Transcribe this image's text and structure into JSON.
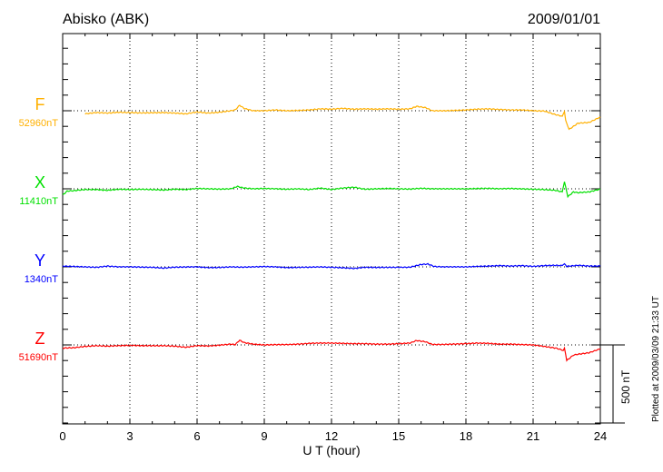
{
  "chart_data": {
    "type": "line",
    "title": "Abisko (ABK)",
    "date": "2009/01/01",
    "xlabel": "U T (hour)",
    "xlim": [
      0,
      24
    ],
    "xticks": [
      "0",
      "3",
      "6",
      "9",
      "12",
      "15",
      "18",
      "21",
      "24"
    ],
    "y_units": "nT deviation from baseline",
    "scale_bar_label": "500 nT",
    "scale_bar_nT": 500,
    "minor_tick_nT": 100,
    "footer": "Plotted at 2009/03/09 21:33 UT",
    "grid": true,
    "series": [
      {
        "name": "F",
        "baseline_label": "52960nT",
        "color": "#ffb000",
        "points": [
          [
            1,
            -20
          ],
          [
            1.5,
            -12
          ],
          [
            2,
            -15
          ],
          [
            2.5,
            -10
          ],
          [
            3,
            -12
          ],
          [
            3.5,
            -14
          ],
          [
            4,
            -13
          ],
          [
            4.5,
            -12
          ],
          [
            5,
            -15
          ],
          [
            5.5,
            -20
          ],
          [
            6,
            -8
          ],
          [
            6.5,
            -15
          ],
          [
            7,
            -10
          ],
          [
            7.5,
            0
          ],
          [
            7.7,
            5
          ],
          [
            7.9,
            35
          ],
          [
            8.1,
            15
          ],
          [
            8.5,
            0
          ],
          [
            9,
            0
          ],
          [
            9.5,
            5
          ],
          [
            10,
            0
          ],
          [
            10.5,
            2
          ],
          [
            11,
            5
          ],
          [
            11.5,
            12
          ],
          [
            12,
            10
          ],
          [
            12.5,
            15
          ],
          [
            13,
            10
          ],
          [
            13.5,
            12
          ],
          [
            14,
            10
          ],
          [
            14.5,
            12
          ],
          [
            15,
            10
          ],
          [
            15.5,
            12
          ],
          [
            15.8,
            28
          ],
          [
            16.2,
            20
          ],
          [
            16.5,
            0
          ],
          [
            17,
            0
          ],
          [
            17.5,
            2
          ],
          [
            18,
            5
          ],
          [
            18.5,
            10
          ],
          [
            19,
            12
          ],
          [
            19.5,
            8
          ],
          [
            20,
            5
          ],
          [
            20.5,
            5
          ],
          [
            21,
            0
          ],
          [
            21.5,
            -2
          ],
          [
            22,
            -25
          ],
          [
            22.3,
            -35
          ],
          [
            22.4,
            -5
          ],
          [
            22.45,
            -60
          ],
          [
            22.6,
            -120
          ],
          [
            23,
            -80
          ],
          [
            23.5,
            -75
          ],
          [
            24,
            -40
          ]
        ]
      },
      {
        "name": "X",
        "baseline_label": "11410nT",
        "color": "#00e000",
        "points": [
          [
            0,
            -40
          ],
          [
            0.2,
            -15
          ],
          [
            0.5,
            -12
          ],
          [
            1,
            -5
          ],
          [
            1.5,
            -5
          ],
          [
            2,
            -10
          ],
          [
            2.5,
            -3
          ],
          [
            3,
            -5
          ],
          [
            3.5,
            -3
          ],
          [
            4,
            -5
          ],
          [
            4.5,
            -8
          ],
          [
            5,
            -3
          ],
          [
            5.5,
            -5
          ],
          [
            6,
            2
          ],
          [
            6.5,
            0
          ],
          [
            7,
            -2
          ],
          [
            7.5,
            0
          ],
          [
            7.8,
            15
          ],
          [
            8.1,
            5
          ],
          [
            8.5,
            0
          ],
          [
            9,
            2
          ],
          [
            9.5,
            0
          ],
          [
            10,
            -3
          ],
          [
            10.5,
            0
          ],
          [
            11,
            -5
          ],
          [
            11.5,
            5
          ],
          [
            12,
            -5
          ],
          [
            12.5,
            5
          ],
          [
            13,
            10
          ],
          [
            13.5,
            -3
          ],
          [
            14,
            0
          ],
          [
            14.5,
            2
          ],
          [
            15,
            0
          ],
          [
            15.5,
            -2
          ],
          [
            16,
            3
          ],
          [
            16.5,
            0
          ],
          [
            17,
            0
          ],
          [
            18,
            0
          ],
          [
            19,
            3
          ],
          [
            19.5,
            0
          ],
          [
            20,
            2
          ],
          [
            21,
            -3
          ],
          [
            21.5,
            -5
          ],
          [
            22,
            -10
          ],
          [
            22.3,
            -20
          ],
          [
            22.4,
            45
          ],
          [
            22.55,
            -50
          ],
          [
            22.8,
            -20
          ],
          [
            23,
            -25
          ],
          [
            23.5,
            -20
          ],
          [
            24,
            -2
          ]
        ]
      },
      {
        "name": "Y",
        "baseline_label": "1340nT",
        "color": "#0000ff",
        "points": [
          [
            0,
            5
          ],
          [
            1,
            0
          ],
          [
            1.5,
            -3
          ],
          [
            2,
            5
          ],
          [
            2.5,
            0
          ],
          [
            3,
            0
          ],
          [
            4,
            -3
          ],
          [
            4.5,
            -8
          ],
          [
            5,
            -2
          ],
          [
            6,
            0
          ],
          [
            6.5,
            -5
          ],
          [
            7,
            -4
          ],
          [
            7.5,
            0
          ],
          [
            8,
            -2
          ],
          [
            9,
            2
          ],
          [
            9.5,
            0
          ],
          [
            10,
            -5
          ],
          [
            11,
            -2
          ],
          [
            11.5,
            0
          ],
          [
            12,
            -3
          ],
          [
            12.5,
            -6
          ],
          [
            13,
            -10
          ],
          [
            13.5,
            -3
          ],
          [
            14,
            -4
          ],
          [
            15,
            -3
          ],
          [
            15.5,
            -2
          ],
          [
            16,
            15
          ],
          [
            16.3,
            18
          ],
          [
            16.6,
            2
          ],
          [
            17,
            0
          ],
          [
            18,
            0
          ],
          [
            18.5,
            3
          ],
          [
            19,
            5
          ],
          [
            19.5,
            8
          ],
          [
            20,
            5
          ],
          [
            20.5,
            8
          ],
          [
            21,
            3
          ],
          [
            21.5,
            8
          ],
          [
            22,
            10
          ],
          [
            22.3,
            8
          ],
          [
            22.4,
            20
          ],
          [
            22.5,
            3
          ],
          [
            23,
            10
          ],
          [
            23.5,
            5
          ],
          [
            24,
            5
          ]
        ]
      },
      {
        "name": "Z",
        "baseline_label": "51690nT",
        "color": "#ff0000",
        "points": [
          [
            0,
            -20
          ],
          [
            0.5,
            -18
          ],
          [
            1,
            -10
          ],
          [
            1.5,
            -5
          ],
          [
            2,
            -8
          ],
          [
            2.5,
            -5
          ],
          [
            3,
            -3
          ],
          [
            3.5,
            -5
          ],
          [
            4,
            -5
          ],
          [
            4.5,
            -5
          ],
          [
            5,
            -8
          ],
          [
            5.5,
            -15
          ],
          [
            6,
            -5
          ],
          [
            6.5,
            -7
          ],
          [
            7,
            -2
          ],
          [
            7.5,
            5
          ],
          [
            7.7,
            2
          ],
          [
            7.9,
            30
          ],
          [
            8.1,
            15
          ],
          [
            8.5,
            5
          ],
          [
            9,
            0
          ],
          [
            9.5,
            2
          ],
          [
            10,
            2
          ],
          [
            10.5,
            5
          ],
          [
            11,
            10
          ],
          [
            11.5,
            12
          ],
          [
            12,
            12
          ],
          [
            12.5,
            10
          ],
          [
            13,
            8
          ],
          [
            13.5,
            8
          ],
          [
            14,
            5
          ],
          [
            14.5,
            5
          ],
          [
            15,
            8
          ],
          [
            15.5,
            12
          ],
          [
            15.8,
            28
          ],
          [
            16.2,
            20
          ],
          [
            16.5,
            3
          ],
          [
            17,
            3
          ],
          [
            18,
            8
          ],
          [
            18.5,
            12
          ],
          [
            19,
            10
          ],
          [
            19.5,
            5
          ],
          [
            20,
            5
          ],
          [
            20.5,
            2
          ],
          [
            21,
            0
          ],
          [
            21.5,
            -10
          ],
          [
            22,
            -20
          ],
          [
            22.35,
            -35
          ],
          [
            22.4,
            -20
          ],
          [
            22.5,
            -100
          ],
          [
            22.8,
            -65
          ],
          [
            23,
            -60
          ],
          [
            23.5,
            -50
          ],
          [
            24,
            -25
          ]
        ]
      }
    ]
  }
}
